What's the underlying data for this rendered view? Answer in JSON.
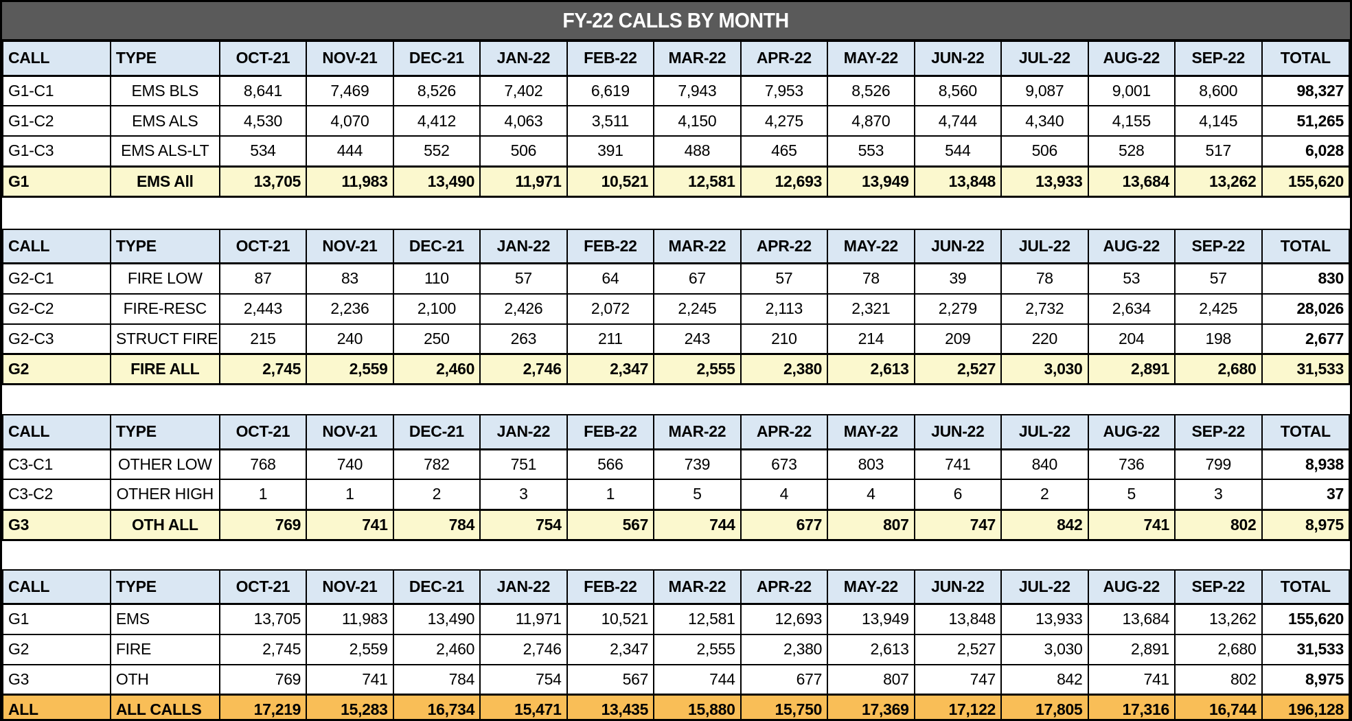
{
  "title": "FY-22 CALLS BY MONTH",
  "colors": {
    "title_bar_bg": "#5A5A5A",
    "title_text": "#FFFFFF",
    "header_bg": "#DAE7F3",
    "subtotal_bg": "#FBF8CE",
    "grand_total_bg": "#F9BE57",
    "border": "#000000"
  },
  "chart_data": {
    "type": "table",
    "title": "FY-22 CALLS BY MONTH",
    "columns": [
      "CALL",
      "TYPE",
      "OCT-21",
      "NOV-21",
      "DEC-21",
      "JAN-22",
      "FEB-22",
      "MAR-22",
      "APR-22",
      "MAY-22",
      "JUN-22",
      "JUL-22",
      "AUG-22",
      "SEP-22",
      "TOTAL"
    ],
    "sections": [
      {
        "rows": [
          {
            "call": "G1-C1",
            "type": "EMS BLS",
            "values": [
              "8,641",
              "7,469",
              "8,526",
              "7,402",
              "6,619",
              "7,943",
              "7,953",
              "8,526",
              "8,560",
              "9,087",
              "9,001",
              "8,600"
            ],
            "total": "98,327",
            "style": "detail"
          },
          {
            "call": "G1-C2",
            "type": "EMS ALS",
            "values": [
              "4,530",
              "4,070",
              "4,412",
              "4,063",
              "3,511",
              "4,150",
              "4,275",
              "4,870",
              "4,744",
              "4,340",
              "4,155",
              "4,145"
            ],
            "total": "51,265",
            "style": "detail"
          },
          {
            "call": "G1-C3",
            "type": "EMS ALS-LT",
            "values": [
              "534",
              "444",
              "552",
              "506",
              "391",
              "488",
              "465",
              "553",
              "544",
              "506",
              "528",
              "517"
            ],
            "total": "6,028",
            "style": "detail"
          },
          {
            "call": "G1",
            "type": "EMS All",
            "values": [
              "13,705",
              "11,983",
              "13,490",
              "11,971",
              "10,521",
              "12,581",
              "12,693",
              "13,949",
              "13,848",
              "13,933",
              "13,684",
              "13,262"
            ],
            "total": "155,620",
            "style": "subtotal"
          }
        ]
      },
      {
        "rows": [
          {
            "call": "G2-C1",
            "type": "FIRE LOW",
            "values": [
              "87",
              "83",
              "110",
              "57",
              "64",
              "67",
              "57",
              "78",
              "39",
              "78",
              "53",
              "57"
            ],
            "total": "830",
            "style": "detail"
          },
          {
            "call": "G2-C2",
            "type": "FIRE-RESC",
            "values": [
              "2,443",
              "2,236",
              "2,100",
              "2,426",
              "2,072",
              "2,245",
              "2,113",
              "2,321",
              "2,279",
              "2,732",
              "2,634",
              "2,425"
            ],
            "total": "28,026",
            "style": "detail"
          },
          {
            "call": "G2-C3",
            "type": "STRUCT FIRE",
            "values": [
              "215",
              "240",
              "250",
              "263",
              "211",
              "243",
              "210",
              "214",
              "209",
              "220",
              "204",
              "198"
            ],
            "total": "2,677",
            "style": "detail"
          },
          {
            "call": "G2",
            "type": "FIRE ALL",
            "values": [
              "2,745",
              "2,559",
              "2,460",
              "2,746",
              "2,347",
              "2,555",
              "2,380",
              "2,613",
              "2,527",
              "3,030",
              "2,891",
              "2,680"
            ],
            "total": "31,533",
            "style": "subtotal"
          }
        ]
      },
      {
        "rows": [
          {
            "call": "C3-C1",
            "type": "OTHER LOW",
            "values": [
              "768",
              "740",
              "782",
              "751",
              "566",
              "739",
              "673",
              "803",
              "741",
              "840",
              "736",
              "799"
            ],
            "total": "8,938",
            "style": "detail"
          },
          {
            "call": "C3-C2",
            "type": "OTHER HIGH",
            "values": [
              "1",
              "1",
              "2",
              "3",
              "1",
              "5",
              "4",
              "4",
              "6",
              "2",
              "5",
              "3"
            ],
            "total": "37",
            "style": "detail"
          },
          {
            "call": "G3",
            "type": "OTH ALL",
            "values": [
              "769",
              "741",
              "784",
              "754",
              "567",
              "744",
              "677",
              "807",
              "747",
              "842",
              "741",
              "802"
            ],
            "total": "8,975",
            "style": "subtotal"
          }
        ]
      },
      {
        "rows": [
          {
            "call": "G1",
            "type": "EMS",
            "values": [
              "13,705",
              "11,983",
              "13,490",
              "11,971",
              "10,521",
              "12,581",
              "12,693",
              "13,949",
              "13,848",
              "13,933",
              "13,684",
              "13,262"
            ],
            "total": "155,620",
            "style": "summary"
          },
          {
            "call": "G2",
            "type": "FIRE",
            "values": [
              "2,745",
              "2,559",
              "2,460",
              "2,746",
              "2,347",
              "2,555",
              "2,380",
              "2,613",
              "2,527",
              "3,030",
              "2,891",
              "2,680"
            ],
            "total": "31,533",
            "style": "summary"
          },
          {
            "call": "G3",
            "type": "OTH",
            "values": [
              "769",
              "741",
              "784",
              "754",
              "567",
              "744",
              "677",
              "807",
              "747",
              "842",
              "741",
              "802"
            ],
            "total": "8,975",
            "style": "summary"
          },
          {
            "call": "ALL",
            "type": "ALL CALLS",
            "values": [
              "17,219",
              "15,283",
              "16,734",
              "15,471",
              "13,435",
              "15,880",
              "15,750",
              "17,369",
              "17,122",
              "17,805",
              "17,316",
              "16,744"
            ],
            "total": "196,128",
            "style": "grand"
          }
        ]
      }
    ]
  }
}
